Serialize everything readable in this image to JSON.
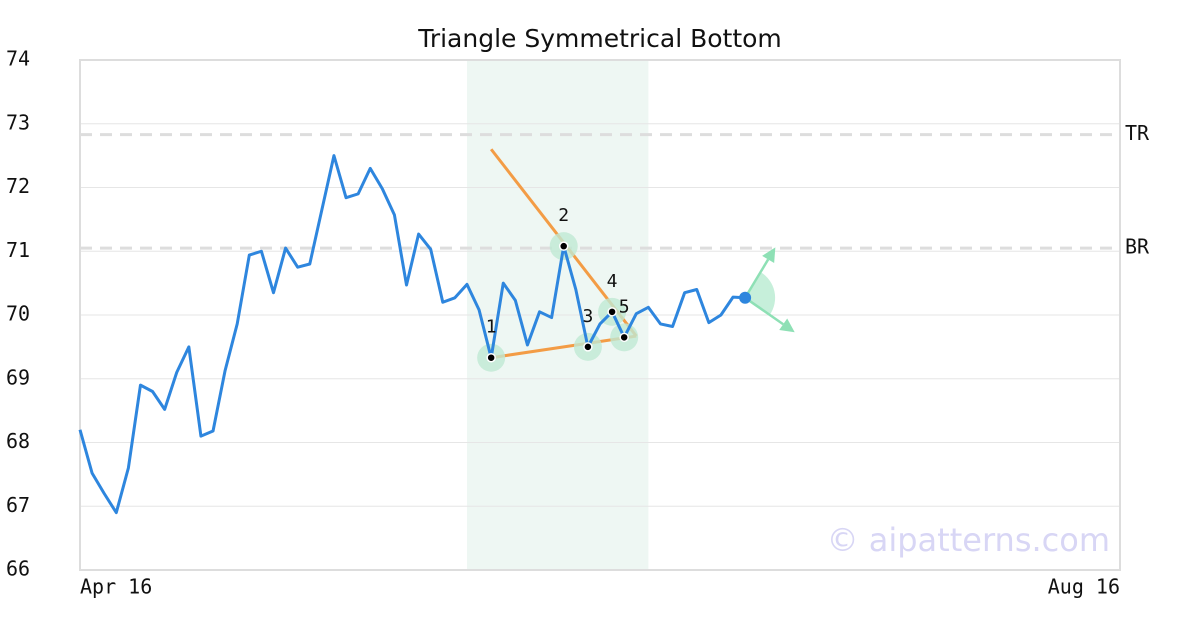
{
  "chart_data": {
    "type": "line",
    "title": "Triangle Symmetrical Bottom",
    "color": "#2e86de",
    "x": [
      0,
      1,
      2,
      3,
      4,
      5,
      6,
      7,
      8,
      9,
      10,
      11,
      12,
      13,
      14,
      15,
      16,
      17,
      18,
      19,
      20,
      21,
      22,
      23,
      24,
      25,
      26,
      27,
      28,
      29,
      30,
      31,
      32,
      33,
      34,
      35,
      36,
      37,
      38,
      39,
      40,
      41,
      42,
      43,
      44,
      45,
      46,
      47,
      48,
      49,
      50,
      51,
      52,
      53,
      54,
      55
    ],
    "values": [
      68.2,
      67.52,
      67.2,
      66.9,
      67.6,
      68.9,
      68.8,
      68.52,
      69.1,
      69.5,
      68.1,
      68.18,
      69.13,
      69.86,
      70.94,
      71.0,
      70.35,
      71.05,
      70.75,
      70.8,
      71.65,
      72.5,
      71.84,
      71.9,
      72.3,
      71.98,
      71.57,
      70.47,
      71.27,
      71.03,
      70.2,
      70.27,
      70.48,
      70.08,
      69.33,
      70.5,
      70.23,
      69.53,
      70.05,
      69.96,
      71.08,
      70.4,
      69.5,
      69.86,
      70.05,
      69.65,
      70.02,
      70.12,
      69.86,
      69.82,
      70.35,
      70.4,
      69.88,
      70.0,
      70.28,
      70.27
    ],
    "xlim": [
      0,
      86
    ],
    "xticks": [
      {
        "value": 0,
        "label": "Apr 16"
      },
      {
        "value": 86,
        "label": "Aug 16"
      }
    ],
    "ylim": [
      66,
      74
    ],
    "yticks": [
      66,
      67,
      68,
      69,
      70,
      71,
      72,
      73,
      74
    ],
    "grid": true,
    "highlight": {
      "from": 32,
      "to": 47,
      "color": "#eef7f3"
    },
    "levels": [
      {
        "label": "TR",
        "value": 72.83
      },
      {
        "label": "BR",
        "value": 71.05
      }
    ],
    "pattern_points": [
      {
        "label": "1",
        "x": 34,
        "y": 69.33
      },
      {
        "label": "2",
        "x": 40,
        "y": 71.08
      },
      {
        "label": "3",
        "x": 42,
        "y": 69.5
      },
      {
        "label": "4",
        "x": 44,
        "y": 70.05
      },
      {
        "label": "5",
        "x": 45,
        "y": 69.65
      }
    ],
    "trendline_color": "#f39c45",
    "trendlines": [
      {
        "x": [
          34,
          46
        ],
        "y": [
          72.6,
          69.67
        ]
      },
      {
        "x": [
          34,
          46
        ],
        "y": [
          69.33,
          69.67
        ]
      }
    ],
    "projection_color": "#8ee0b5",
    "projections": [
      {
        "x": 57.5,
        "y": 71.06
      },
      {
        "x": 59.1,
        "y": 69.73
      }
    ],
    "watermark": "© aipatterns.com"
  }
}
